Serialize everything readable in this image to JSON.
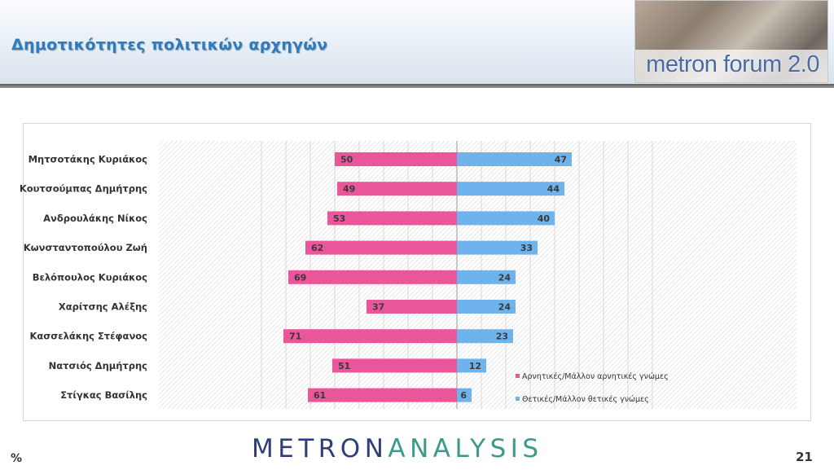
{
  "header": {
    "title": "Δημοτικότητες πολιτικών αρχηγών",
    "logo_text": "metron forum 2.0"
  },
  "footer": {
    "unit": "%",
    "brand_part1": "METRON",
    "brand_part2": "ANALYSIS",
    "page_number": "21"
  },
  "colors": {
    "negative": "#e9579a",
    "positive": "#6fb3ec",
    "title": "#2e7bbf"
  },
  "chart_data": {
    "type": "bar",
    "orientation": "horizontal-diverging",
    "categories": [
      "Μητσοτάκης Κυριάκος",
      "Κουτσούμπας Δημήτρης",
      "Ανδρουλάκης Νίκος",
      "Κωνσταντοπούλου Ζωή",
      "Βελόπουλος Κυριάκος",
      "Χαρίτσης Αλέξης",
      "Κασσελάκης Στέφανος",
      "Νατσιός Δημήτρης",
      "Στίγκας Βασίλης"
    ],
    "series": [
      {
        "name": "Αρνητικές/Μάλλον αρνητικές γνώμες",
        "values": [
          50,
          49,
          53,
          62,
          69,
          37,
          71,
          51,
          61
        ]
      },
      {
        "name": "Θετικές/Μάλλον θετικές γνώμες",
        "values": [
          47,
          44,
          40,
          33,
          24,
          24,
          23,
          12,
          6
        ]
      }
    ],
    "xlim": [
      -80,
      80
    ],
    "grid": true,
    "legend": "bottom-right"
  }
}
